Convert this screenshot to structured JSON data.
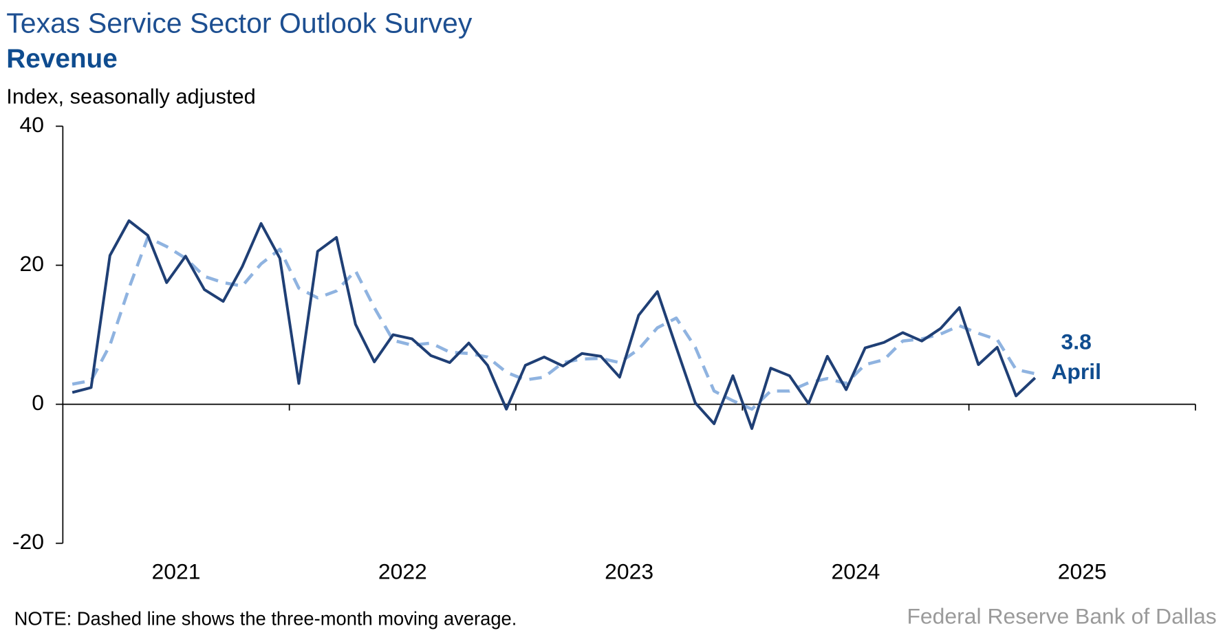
{
  "chart_data": {
    "type": "line",
    "title": "Texas Service Sector Outlook Survey",
    "subtitle": "Revenue",
    "y_label": "Index, seasonally adjusted",
    "note": "NOTE: Dashed line shows the three-month moving average.",
    "source": "Federal Reserve Bank of Dallas",
    "annotations": [
      "3.8",
      "April"
    ],
    "x": [
      2021.042,
      2021.125,
      2021.208,
      2021.292,
      2021.375,
      2021.458,
      2021.542,
      2021.625,
      2021.708,
      2021.792,
      2021.875,
      2021.958,
      2022.042,
      2022.125,
      2022.208,
      2022.292,
      2022.375,
      2022.458,
      2022.542,
      2022.625,
      2022.708,
      2022.792,
      2022.875,
      2022.958,
      2023.042,
      2023.125,
      2023.208,
      2023.292,
      2023.375,
      2023.458,
      2023.542,
      2023.625,
      2023.708,
      2023.792,
      2023.875,
      2023.958,
      2024.042,
      2024.125,
      2024.208,
      2024.292,
      2024.375,
      2024.458,
      2024.542,
      2024.625,
      2024.708,
      2024.792,
      2024.875,
      2024.958,
      2025.042,
      2025.125,
      2025.208,
      2025.292
    ],
    "series": [
      {
        "name": "Revenue",
        "color": "#1f3f75",
        "dashed": false,
        "values": [
          1.7,
          2.4,
          21.4,
          26.4,
          24.3,
          17.5,
          21.3,
          16.5,
          14.8,
          19.8,
          26.0,
          21.0,
          3.0,
          22.0,
          24.0,
          11.5,
          6.1,
          10.0,
          9.4,
          7.0,
          6.0,
          8.8,
          5.6,
          -0.7,
          5.6,
          6.8,
          5.5,
          7.3,
          6.9,
          3.9,
          12.8,
          16.2,
          8.2,
          0.2,
          -2.8,
          4.1,
          -3.5,
          5.2,
          4.1,
          0.1,
          6.9,
          2.1,
          8.1,
          8.9,
          10.3,
          9.1,
          10.9,
          13.9,
          5.7,
          8.2,
          1.2,
          3.8
        ]
      },
      {
        "name": "Three-month moving average",
        "color": "#8fb3e0",
        "dashed": true,
        "values": [
          2.9,
          3.4,
          8.5,
          16.7,
          24.0,
          22.7,
          21.0,
          18.4,
          17.5,
          17.0,
          20.2,
          22.3,
          16.7,
          15.3,
          16.3,
          19.2,
          13.9,
          9.2,
          8.5,
          8.8,
          7.5,
          7.3,
          6.8,
          4.6,
          3.5,
          3.9,
          6.0,
          6.5,
          6.6,
          6.0,
          7.9,
          11.0,
          12.4,
          8.2,
          1.9,
          0.5,
          -0.7,
          1.9,
          1.9,
          3.1,
          3.7,
          3.0,
          5.7,
          6.4,
          9.1,
          9.4,
          10.1,
          11.3,
          10.2,
          9.3,
          5.0,
          4.4
        ]
      }
    ],
    "xlim": [
      2021,
      2026
    ],
    "xticks": [
      {
        "value": 2021.5,
        "label": "2021"
      },
      {
        "value": 2022.5,
        "label": "2022"
      },
      {
        "value": 2023.5,
        "label": "2023"
      },
      {
        "value": 2024.5,
        "label": "2024"
      },
      {
        "value": 2025.5,
        "label": "2025"
      }
    ],
    "ylim": [
      -20,
      40
    ],
    "yticks": [
      -20,
      0,
      20,
      40
    ],
    "grid": false
  }
}
